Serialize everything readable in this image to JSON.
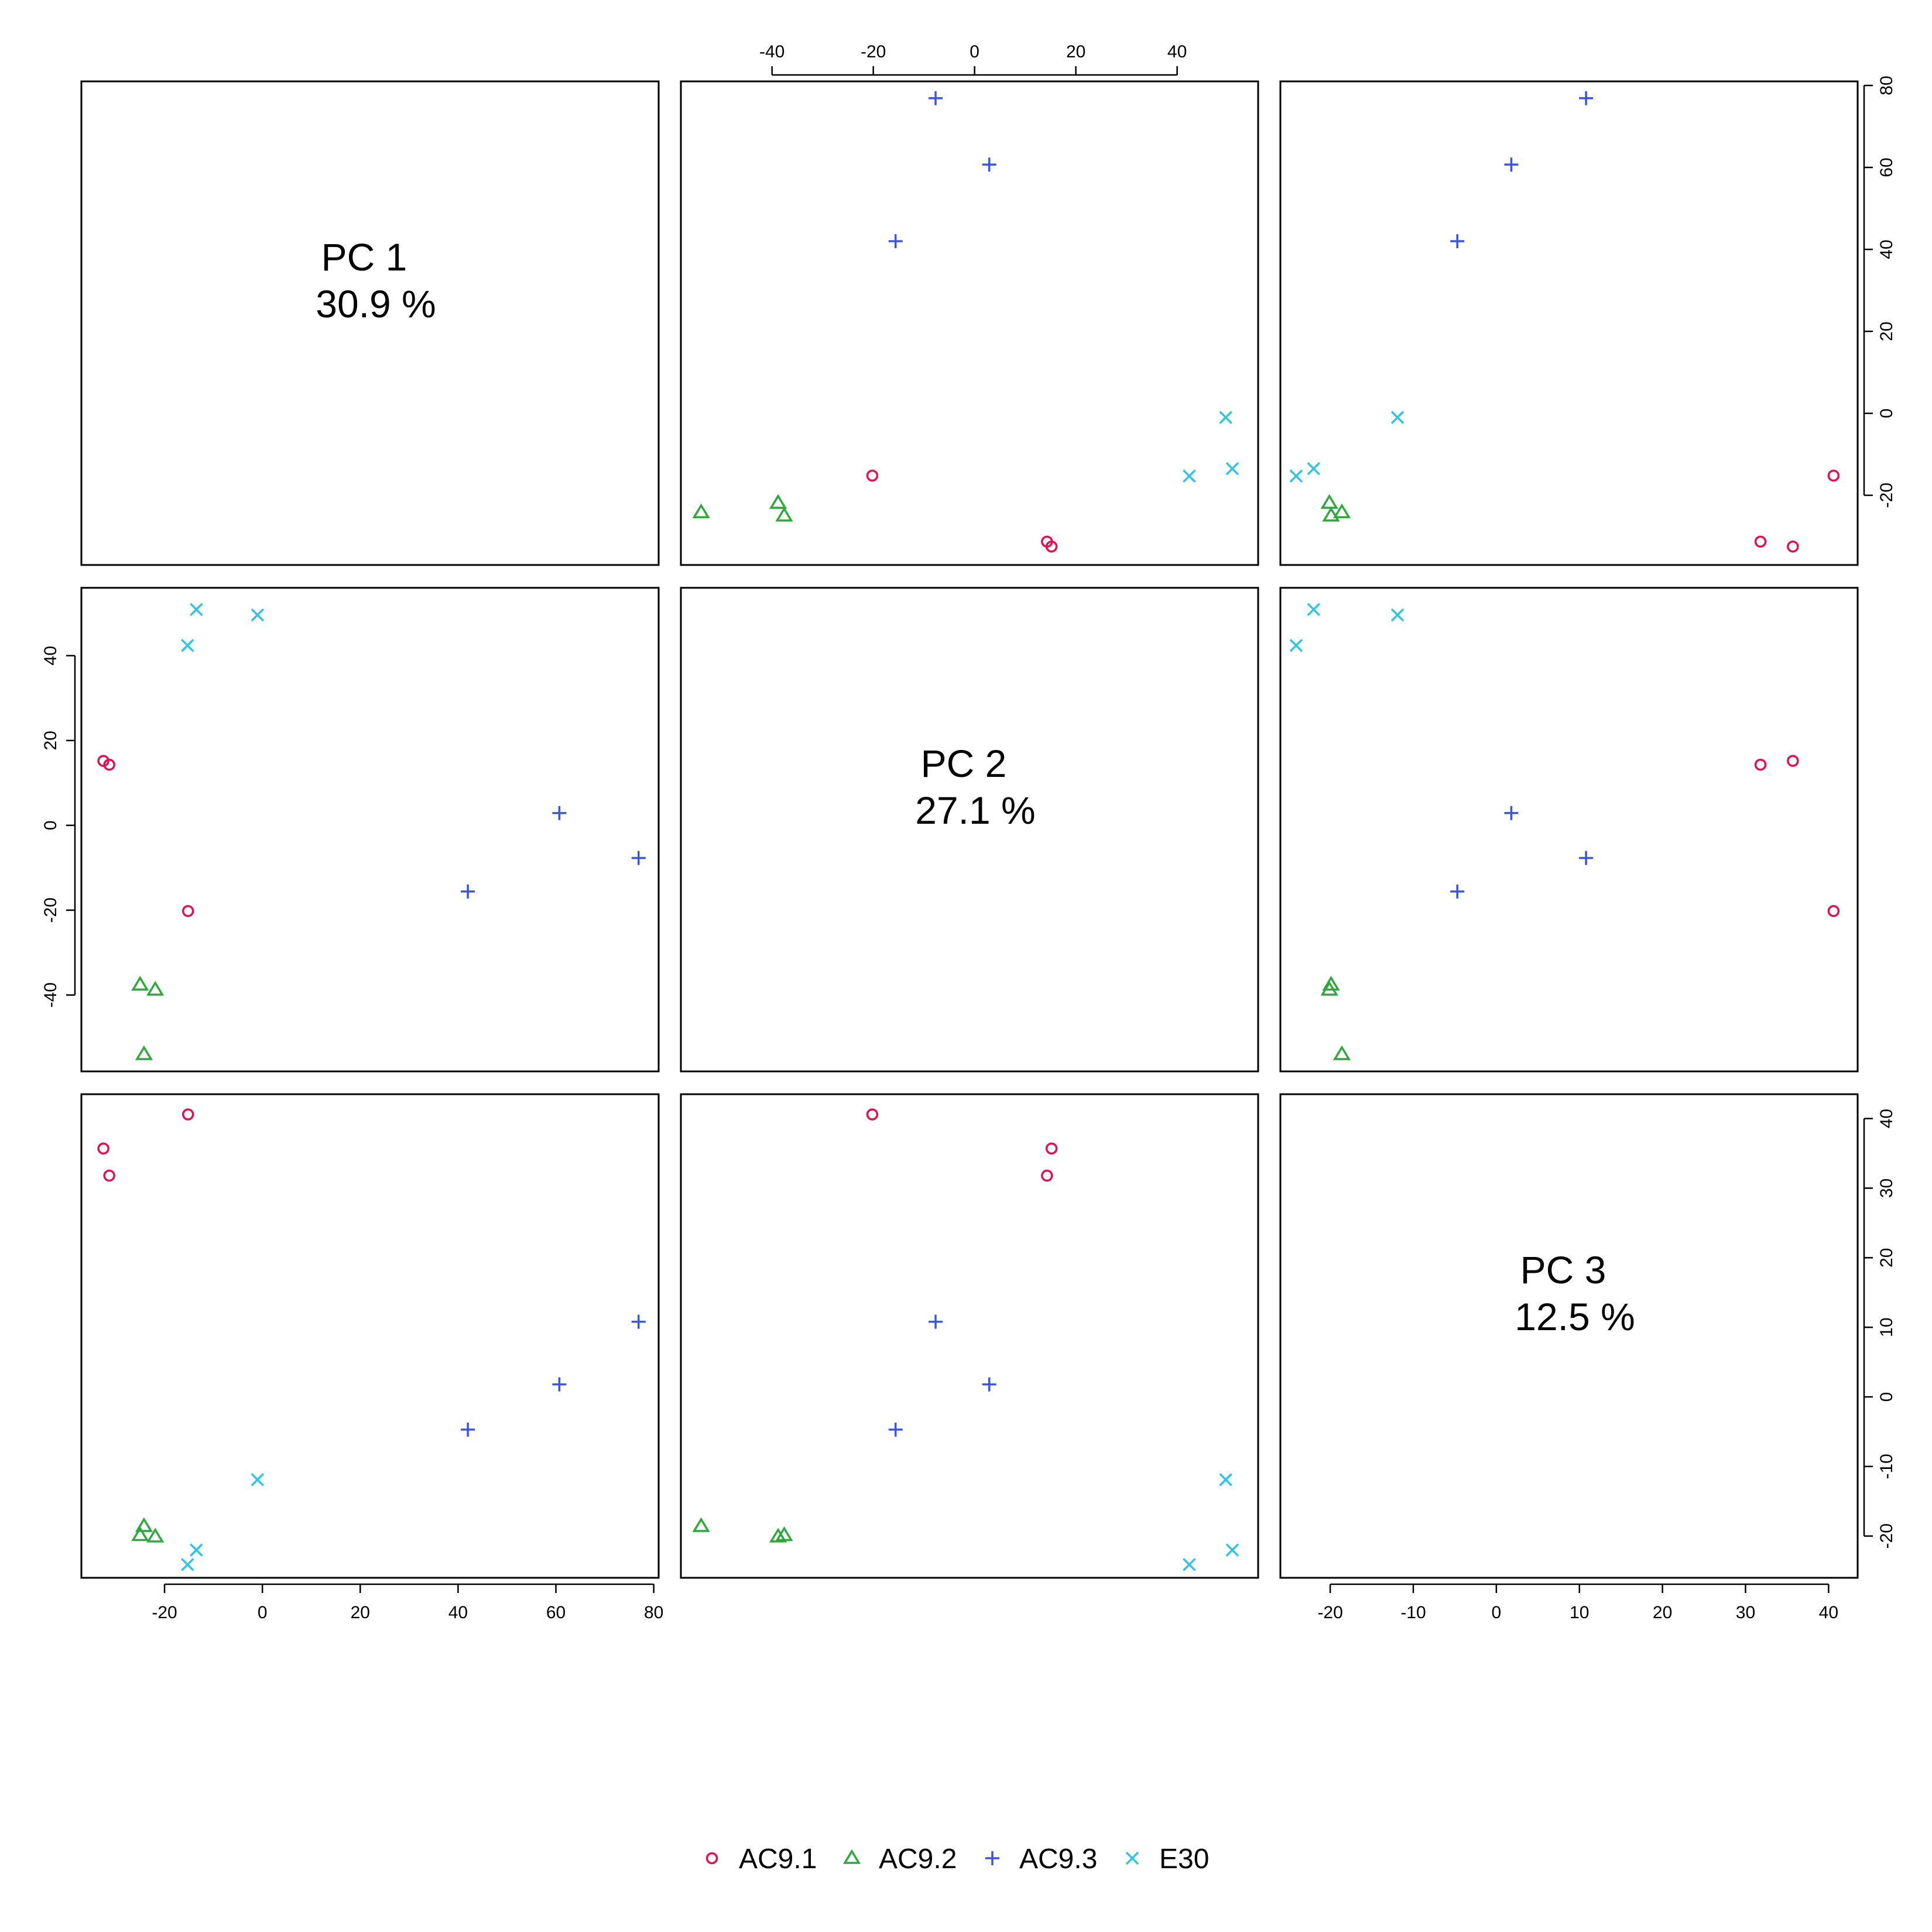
{
  "chart_data": {
    "type": "scatter",
    "variables": [
      {
        "name": "PC 1",
        "percent": "30.9 %",
        "range": [
          -37,
          81
        ]
      },
      {
        "name": "PC 2",
        "percent": "27.1 %",
        "range": [
          -58,
          56
        ]
      },
      {
        "name": "PC 3",
        "percent": "12.5 %",
        "range": [
          -26,
          43.5
        ]
      }
    ],
    "ticks": {
      "pc1": [
        -20,
        0,
        20,
        40,
        60,
        80
      ],
      "pc2": [
        -40,
        -20,
        0,
        20,
        40
      ],
      "pc3_top": [
        -20,
        -10,
        0,
        10,
        20,
        30,
        40
      ],
      "pc3_side": [
        -20,
        -10,
        0,
        10,
        20,
        30,
        40
      ],
      "pc2_side": [
        -40,
        -20,
        0,
        20,
        40
      ],
      "pc1_side": [
        -20,
        0,
        20,
        40,
        60,
        80
      ]
    },
    "series": [
      {
        "name": "AC9.1",
        "symbol": "circle",
        "color": "#e0114f",
        "points": [
          {
            "pc1": -32.5,
            "pc2": 15.2,
            "pc3": 35.7
          },
          {
            "pc1": -31.3,
            "pc2": 14.3,
            "pc3": 31.8
          },
          {
            "pc1": -15.2,
            "pc2": -20.2,
            "pc3": 40.6
          }
        ]
      },
      {
        "name": "AC9.2",
        "symbol": "triangle",
        "color": "#2ea83c",
        "points": [
          {
            "pc1": -25.0,
            "pc2": -37.6,
            "pc3": -19.9
          },
          {
            "pc1": -24.2,
            "pc2": -54.0,
            "pc3": -18.6
          },
          {
            "pc1": -21.9,
            "pc2": -38.8,
            "pc3": -20.1
          }
        ]
      },
      {
        "name": "AC9.3",
        "symbol": "plus",
        "color": "#3b56d8",
        "points": [
          {
            "pc1": 42.0,
            "pc2": -15.6,
            "pc3": -4.7
          },
          {
            "pc1": 60.7,
            "pc2": 2.9,
            "pc3": 1.8
          },
          {
            "pc1": 76.9,
            "pc2": -7.7,
            "pc3": 10.8
          }
        ]
      },
      {
        "name": "E30",
        "symbol": "x",
        "color": "#31c4e2",
        "points": [
          {
            "pc1": -15.3,
            "pc2": 42.4,
            "pc3": -24.1
          },
          {
            "pc1": -13.5,
            "pc2": 50.9,
            "pc3": -22.0
          },
          {
            "pc1": -1.0,
            "pc2": 49.6,
            "pc3": -11.9
          }
        ]
      }
    ],
    "legend": {
      "position": "bottom-center",
      "entries": [
        "AC9.1",
        "AC9.2",
        "AC9.3",
        "E30"
      ]
    }
  }
}
